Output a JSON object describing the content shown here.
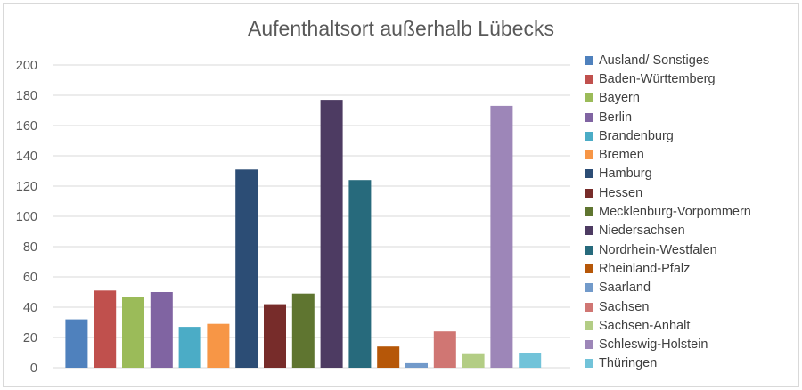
{
  "chart_data": {
    "type": "bar",
    "title": "Aufenthaltsort außerhalb Lübecks",
    "xlabel": "",
    "ylabel": "",
    "ylim": [
      0,
      200
    ],
    "yticks": [
      0,
      20,
      40,
      60,
      80,
      100,
      120,
      140,
      160,
      180,
      200
    ],
    "grid": true,
    "legend_position": "right",
    "series": [
      {
        "name": "Ausland/ Sonstiges",
        "value": 32,
        "color": "#4f81bd"
      },
      {
        "name": "Baden-Württemberg",
        "value": 51,
        "color": "#c0504d"
      },
      {
        "name": "Bayern",
        "value": 47,
        "color": "#9bbb59"
      },
      {
        "name": "Berlin",
        "value": 50,
        "color": "#8064a2"
      },
      {
        "name": "Brandenburg",
        "value": 27,
        "color": "#4bacc6"
      },
      {
        "name": "Bremen",
        "value": 29,
        "color": "#f79646"
      },
      {
        "name": "Hamburg",
        "value": 131,
        "color": "#2c4d75"
      },
      {
        "name": "Hessen",
        "value": 42,
        "color": "#772c2a"
      },
      {
        "name": "Mecklenburg-Vorpommern",
        "value": 49,
        "color": "#5f7530"
      },
      {
        "name": "Niedersachsen",
        "value": 177,
        "color": "#4d3b62"
      },
      {
        "name": "Nordrhein-Westfalen",
        "value": 124,
        "color": "#276a7c"
      },
      {
        "name": "Rheinland-Pfalz",
        "value": 14,
        "color": "#b65708"
      },
      {
        "name": "Saarland",
        "value": 3,
        "color": "#729aca"
      },
      {
        "name": "Sachsen",
        "value": 24,
        "color": "#d07673"
      },
      {
        "name": "Sachsen-Anhalt",
        "value": 9,
        "color": "#b3cd85"
      },
      {
        "name": "Schleswig-Holstein",
        "value": 173,
        "color": "#9d86b8"
      },
      {
        "name": "Thüringen",
        "value": 10,
        "color": "#72c3d9"
      }
    ]
  }
}
